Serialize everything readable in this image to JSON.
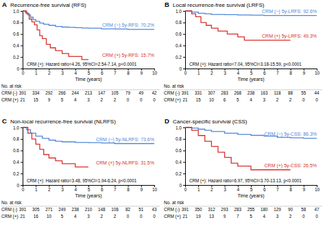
{
  "chart_data": [
    {
      "type": "step",
      "panel_label": "A",
      "title": "Recurrence-free survival (RFS)",
      "xlabel": "Time (years)",
      "xlim": [
        0,
        10
      ],
      "xticks": [
        0,
        1,
        2,
        3,
        4,
        5,
        6,
        7,
        8,
        9,
        10
      ],
      "ylim": [
        0,
        1
      ],
      "yticks": [
        0,
        0.2,
        0.4,
        0.6,
        0.8,
        {
          "value": 1,
          "label": "1.0"
        }
      ],
      "annotation": "CRM (+): Hazard ratio=4.26, 95%CI=2.54-7.14, p<0.0001",
      "risk_table_title": "No. at risk",
      "series": [
        {
          "name": "CRM (-)",
          "color": "#4f86d6",
          "label": "CRM (−) 5y-RFS: 70.2%",
          "x": [
            0,
            0.2,
            0.4,
            0.6,
            0.8,
            1.0,
            1.3,
            1.6,
            2.0,
            2.5,
            3.0,
            3.5,
            4.0,
            4.5,
            5.0,
            6.0,
            7.0,
            8.0,
            9.0,
            10.0
          ],
          "values": [
            1,
            0.97,
            0.93,
            0.89,
            0.85,
            0.82,
            0.79,
            0.77,
            0.75,
            0.73,
            0.72,
            0.715,
            0.71,
            0.705,
            0.702,
            0.69,
            0.685,
            0.68,
            0.68,
            0.68
          ],
          "at_risk": [
            391,
            334,
            292,
            266,
            244,
            213,
            147,
            105,
            79,
            49,
            42
          ]
        },
        {
          "name": "CRM (+)",
          "color": "#d7302c",
          "label": "CRM (+) 5y-RFS: 15.7%",
          "x": [
            0,
            0.3,
            0.5,
            0.7,
            0.9,
            1.1,
            1.3,
            1.5,
            1.8,
            2.1,
            2.5,
            3.0,
            3.5,
            4.5,
            5.0
          ],
          "values": [
            1,
            0.95,
            0.86,
            0.81,
            0.76,
            0.67,
            0.57,
            0.52,
            0.42,
            0.36,
            0.31,
            0.26,
            0.21,
            0.157,
            0.157
          ],
          "at_risk": [
            21,
            15,
            9,
            5,
            4,
            3,
            2,
            2,
            0,
            0,
            0
          ]
        }
      ]
    },
    {
      "type": "step",
      "panel_label": "B",
      "title": "Local recurrence-free survival (LRFS)",
      "xlabel": "Time (years)",
      "xlim": [
        0,
        10
      ],
      "xticks": [
        0,
        1,
        2,
        3,
        4,
        5,
        6,
        7,
        8,
        9,
        10
      ],
      "ylim": [
        0,
        1
      ],
      "yticks": [
        0,
        0.2,
        0.4,
        0.6,
        0.8,
        {
          "value": 1,
          "label": "1.0"
        }
      ],
      "annotation": "CRM (+): Hazard ratio=7.04, 95%CI=3.18-15.59, p<0.0001",
      "risk_table_title": "No. at risk",
      "series": [
        {
          "name": "CRM (-)",
          "color": "#4f86d6",
          "label": "CRM (−) 5y-LRFS: 92.6%",
          "x": [
            0,
            0.5,
            1,
            1.5,
            2,
            3,
            4,
            5,
            6,
            7,
            8,
            10
          ],
          "values": [
            1,
            0.98,
            0.96,
            0.95,
            0.94,
            0.935,
            0.93,
            0.926,
            0.92,
            0.92,
            0.92,
            0.92
          ],
          "at_risk": [
            391,
            331,
            307,
            283,
            268,
            238,
            163,
            118,
            88,
            55,
            44
          ]
        },
        {
          "name": "CRM (+)",
          "color": "#d7302c",
          "label": "CRM (+) 5y-LRFS: 49.3%",
          "x": [
            0,
            0.5,
            0.8,
            1.2,
            1.6,
            2.0,
            2.5,
            3.2,
            4.0,
            4.5,
            5.0,
            8.0
          ],
          "values": [
            1,
            0.95,
            0.9,
            0.8,
            0.75,
            0.7,
            0.65,
            0.6,
            0.55,
            0.493,
            0.493,
            0.493
          ],
          "at_risk": [
            21,
            15,
            10,
            6,
            5,
            4,
            3,
            2,
            2,
            0,
            0
          ]
        }
      ]
    },
    {
      "type": "step",
      "panel_label": "C",
      "title": "Non-local recurrence-free survival (NLRFS)",
      "xlabel": "Time (years)",
      "xlim": [
        0,
        10
      ],
      "xticks": [
        0,
        1,
        2,
        3,
        4,
        5,
        6,
        7,
        8,
        9,
        10
      ],
      "ylim": [
        0,
        1
      ],
      "yticks": [
        0,
        0.2,
        0.4,
        0.6,
        0.8,
        {
          "value": 1,
          "label": "1.0"
        }
      ],
      "annotation": "CRM (+): Hazard ratio=3.48, 95%CI=1.94-6.24, p<0.0001",
      "risk_table_title": "No. at risk",
      "series": [
        {
          "name": "CRM (-)",
          "color": "#4f86d6",
          "label": "CRM (−) 5y-NLRFS: 73.6%",
          "x": [
            0,
            0.3,
            0.6,
            1,
            1.5,
            2,
            2.5,
            3,
            4,
            5,
            6,
            7,
            8,
            10
          ],
          "values": [
            1,
            0.96,
            0.9,
            0.85,
            0.81,
            0.78,
            0.76,
            0.75,
            0.74,
            0.736,
            0.73,
            0.72,
            0.72,
            0.72
          ],
          "at_risk": [
            391,
            305,
            271,
            249,
            238,
            210,
            148,
            108,
            82,
            51,
            43
          ]
        },
        {
          "name": "CRM (+)",
          "color": "#d7302c",
          "label": "CRM (+) 5y-NLRFS: 31.5%",
          "x": [
            0,
            0.4,
            0.7,
            1.0,
            1.3,
            1.6,
            2.0,
            2.5,
            3.0,
            4.0,
            5.0
          ],
          "values": [
            1,
            0.9,
            0.8,
            0.71,
            0.62,
            0.53,
            0.47,
            0.42,
            0.37,
            0.315,
            0.315
          ],
          "at_risk": [
            21,
            16,
            10,
            5,
            4,
            3,
            2,
            2,
            0,
            0,
            0
          ]
        }
      ]
    },
    {
      "type": "step",
      "panel_label": "D",
      "title": "Cancer-specific survival (CSS)",
      "xlabel": "Time (years)",
      "xlim": [
        0,
        10
      ],
      "xticks": [
        0,
        1,
        2,
        3,
        4,
        5,
        6,
        7,
        8,
        9,
        10
      ],
      "ylim": [
        0,
        1
      ],
      "yticks": [
        0,
        0.2,
        0.4,
        0.6,
        0.8,
        {
          "value": 1,
          "label": "1.0"
        }
      ],
      "annotation": "CRM (+): Hazard ratio=6.97, 95%CI=3.70-13.13, p<0.0001",
      "risk_table_title": "No. at risk",
      "series": [
        {
          "name": "CRM (-)",
          "color": "#4f86d6",
          "label": "CRM (−) 5y-CSS: 86.3%",
          "x": [
            0,
            0.5,
            1,
            1.5,
            2,
            3,
            4,
            5,
            6,
            7,
            8,
            9,
            10
          ],
          "values": [
            1,
            0.99,
            0.97,
            0.95,
            0.93,
            0.9,
            0.88,
            0.863,
            0.85,
            0.83,
            0.82,
            0.81,
            0.81
          ],
          "at_risk": [
            391,
            350,
            312,
            293,
            283,
            255,
            180,
            129,
            90,
            58,
            47
          ]
        },
        {
          "name": "CRM (+)",
          "color": "#d7302c",
          "label": "CRM (+) 5y-CSS: 26.5%",
          "x": [
            0,
            0.5,
            1.0,
            1.5,
            2.0,
            2.5,
            3.0,
            3.5,
            4.0,
            5.0,
            8.0
          ],
          "values": [
            1,
            0.95,
            0.86,
            0.76,
            0.67,
            0.57,
            0.48,
            0.38,
            0.33,
            0.265,
            0.265
          ],
          "at_risk": [
            21,
            19,
            13,
            9,
            7,
            5,
            4,
            3,
            2,
            0,
            0
          ]
        }
      ]
    }
  ]
}
